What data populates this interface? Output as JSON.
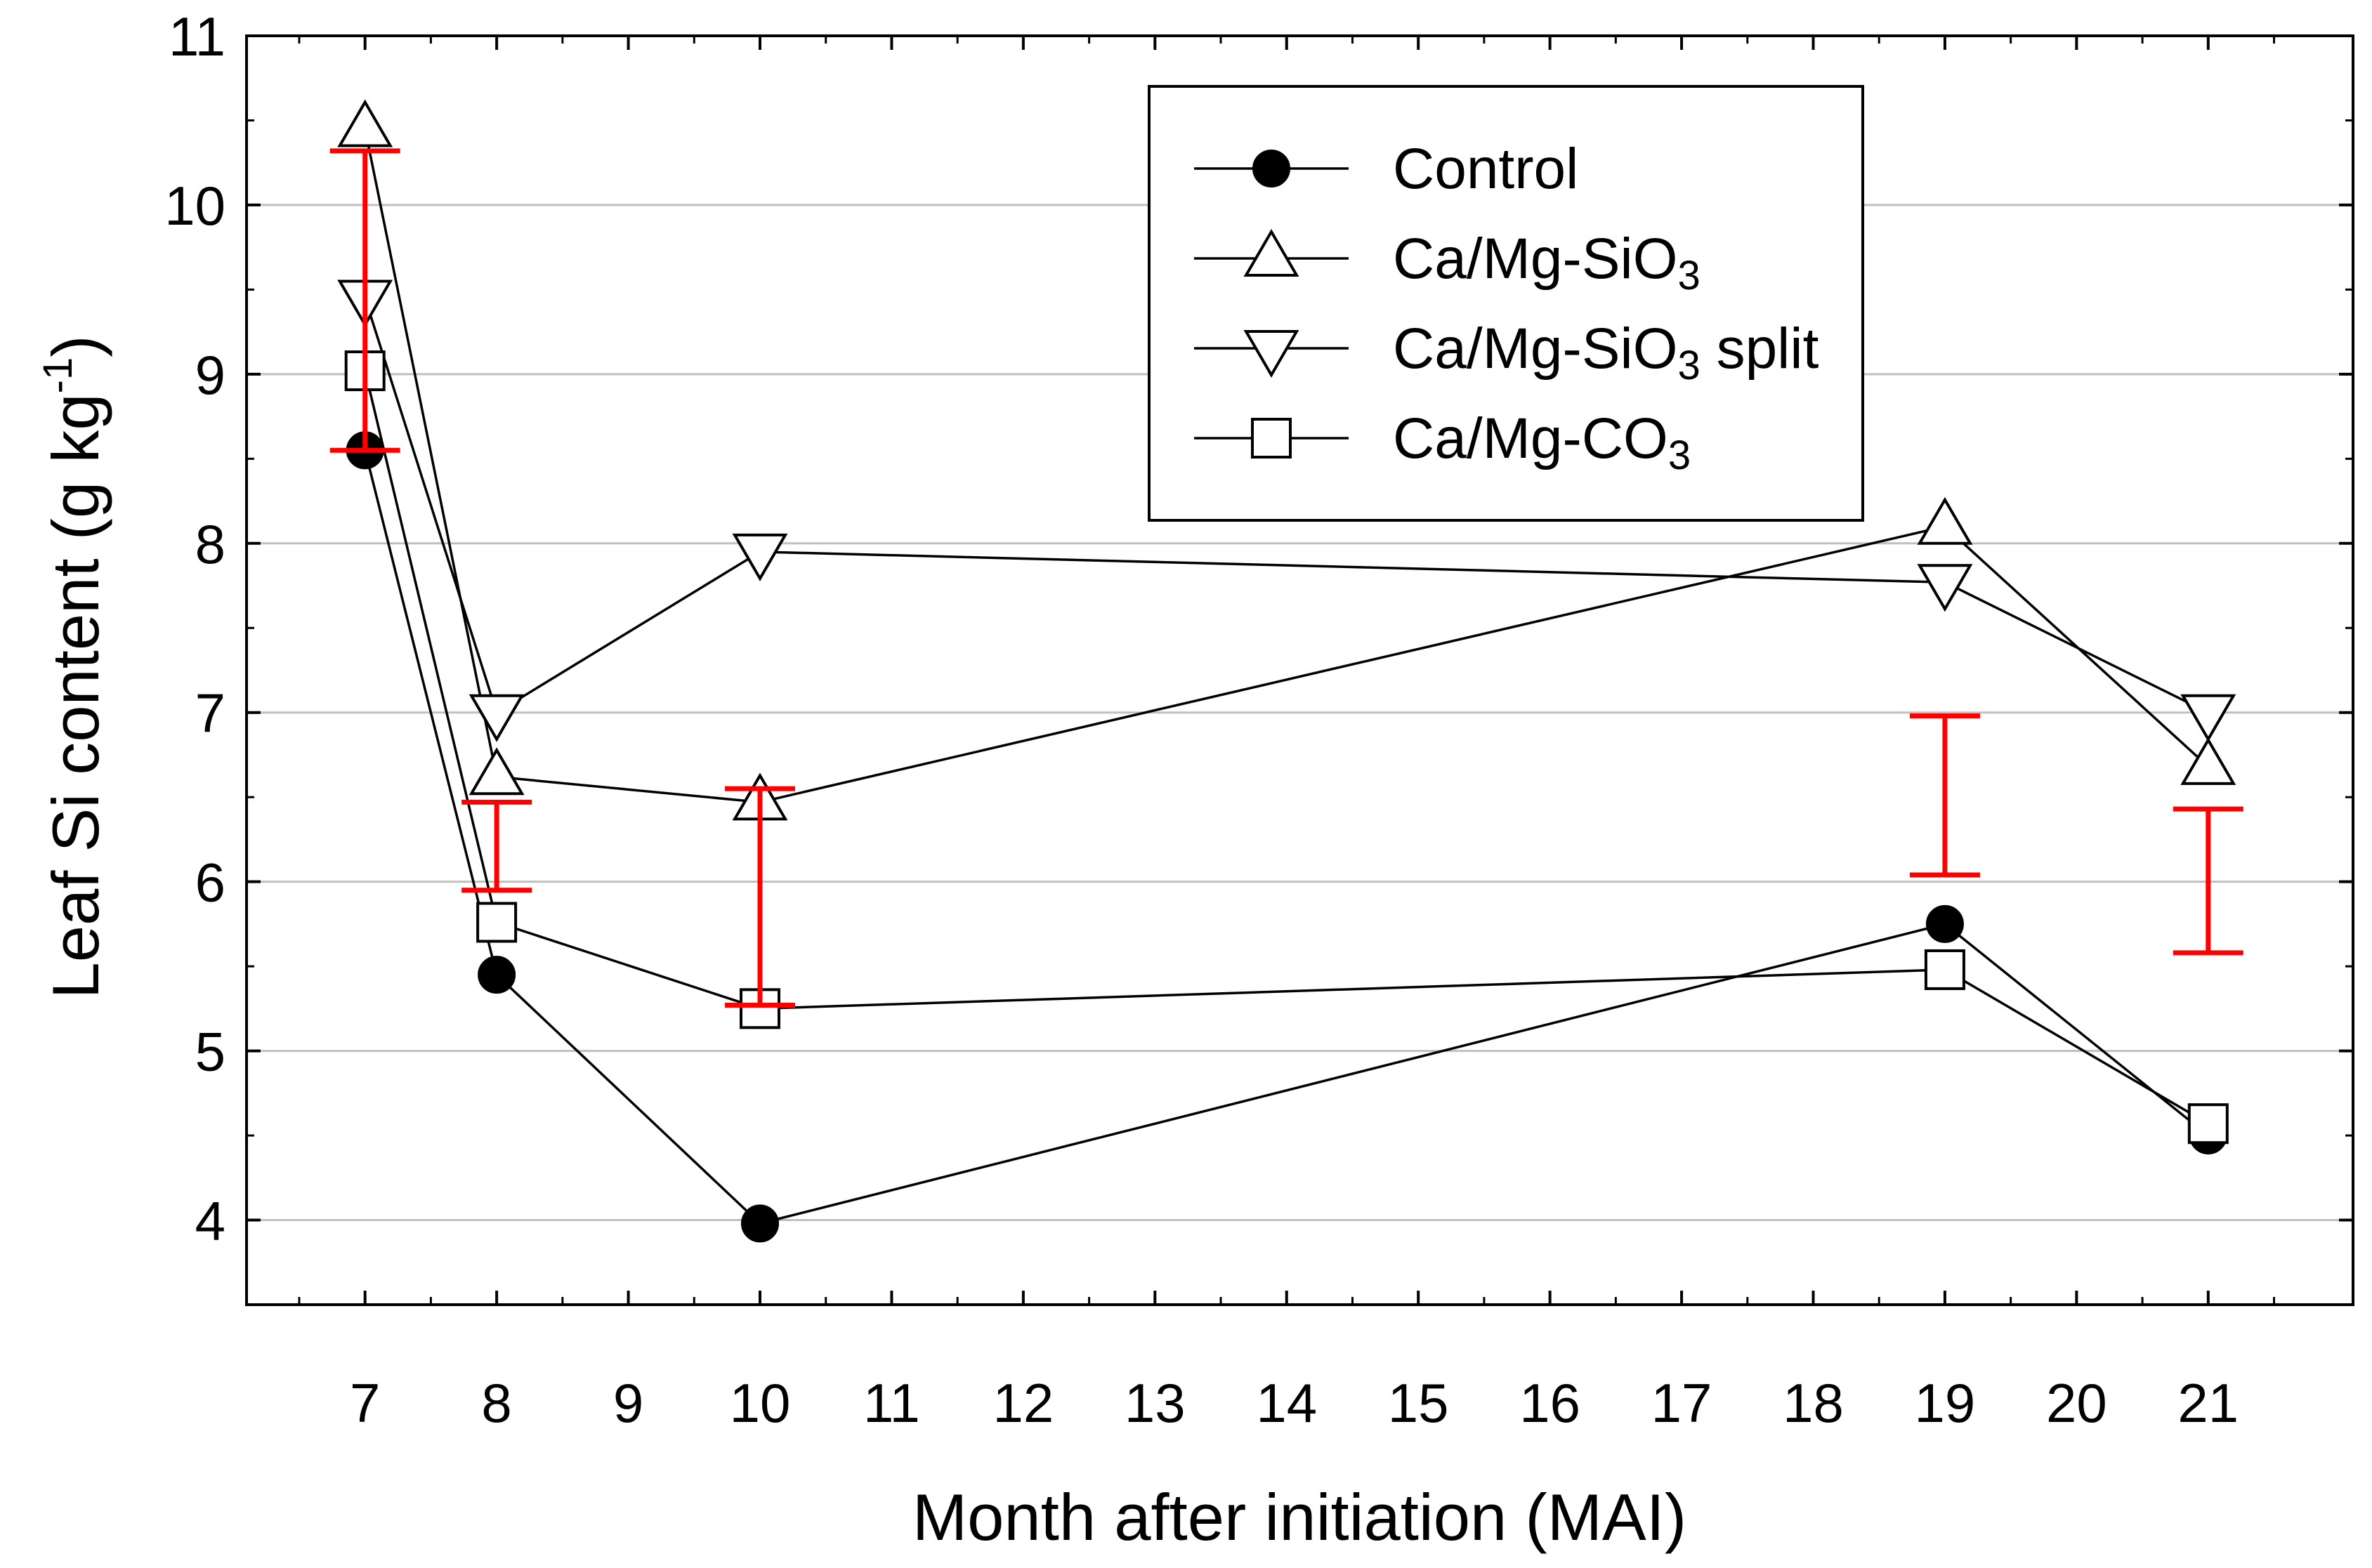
{
  "chart_data": {
    "type": "line",
    "xlabel": "Month after initiation (MAI)",
    "ylabel": "Leaf Si content (g kg",
    "ylabel_sup": "-1",
    "ylabel_end": ")",
    "xlim": [
      6.1,
      22.1
    ],
    "ylim": [
      3.5,
      11
    ],
    "x_ticks": [
      "7",
      "8",
      "9",
      "10",
      "11",
      "12",
      "13",
      "14",
      "15",
      "16",
      "17",
      "18",
      "19",
      "20",
      "21"
    ],
    "y_ticks": [
      "4",
      "5",
      "6",
      "7",
      "8",
      "9",
      "10",
      "11"
    ],
    "grid": "horizontal",
    "x": [
      7,
      8,
      10,
      19,
      21
    ],
    "series": [
      {
        "name": "Control",
        "marker": "circle-filled",
        "values": [
          8.55,
          5.45,
          3.98,
          5.75,
          4.5
        ]
      },
      {
        "name": "Ca/Mg-SiO",
        "sub": "3",
        "suffix": "",
        "marker": "triangle-up",
        "values": [
          10.45,
          6.62,
          6.47,
          8.1,
          6.68
        ]
      },
      {
        "name": "Ca/Mg-SiO",
        "sub": "3",
        "suffix": " split",
        "marker": "triangle-down",
        "values": [
          9.45,
          7.0,
          7.95,
          7.77,
          7.0
        ]
      },
      {
        "name": "Ca/Mg-CO",
        "sub": "3",
        "suffix": "",
        "marker": "square",
        "values": [
          9.02,
          5.76,
          5.25,
          5.48,
          4.57
        ]
      }
    ],
    "error_bars": [
      {
        "x": 7,
        "low": 8.55,
        "high": 10.32
      },
      {
        "x": 8,
        "low": 5.95,
        "high": 6.47
      },
      {
        "x": 10,
        "low": 5.27,
        "high": 6.55
      },
      {
        "x": 19,
        "low": 6.04,
        "high": 6.98
      },
      {
        "x": 21,
        "low": 5.58,
        "high": 6.43
      }
    ],
    "error_bar_color": "#ff0000",
    "line_color": "#000000",
    "grid_color": "#c0c0c0",
    "legend_position": "top-center"
  }
}
